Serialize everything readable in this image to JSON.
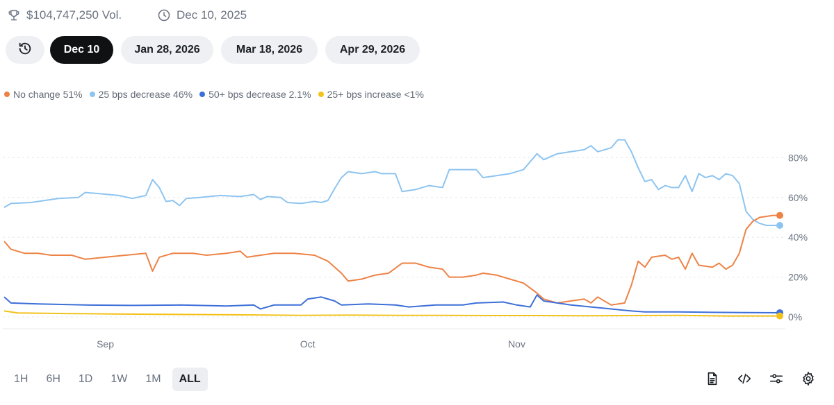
{
  "header": {
    "volume": "$104,747,250 Vol.",
    "date": "Dec 10, 2025",
    "trophy_icon": "trophy-icon",
    "clock_icon": "clock-icon"
  },
  "tabs": {
    "history_icon": "history-icon",
    "items": [
      {
        "label": "Dec 10",
        "active": true
      },
      {
        "label": "Jan 28, 2026",
        "active": false
      },
      {
        "label": "Mar 18, 2026",
        "active": false
      },
      {
        "label": "Apr 29, 2026",
        "active": false
      }
    ]
  },
  "legend": [
    {
      "label": "No change 51%",
      "color": "#ee8245"
    },
    {
      "label": "25 bps decrease 46%",
      "color": "#8dc4f0"
    },
    {
      "label": "50+ bps decrease 2.1%",
      "color": "#3d6fd8"
    },
    {
      "label": "25+ bps increase <1%",
      "color": "#f2c21b"
    }
  ],
  "ranges": [
    {
      "label": "1H",
      "active": false
    },
    {
      "label": "6H",
      "active": false
    },
    {
      "label": "1D",
      "active": false
    },
    {
      "label": "1W",
      "active": false
    },
    {
      "label": "1M",
      "active": false
    },
    {
      "label": "ALL",
      "active": true
    }
  ],
  "tools": [
    "document-icon",
    "embed-code-icon",
    "sliders-icon",
    "settings-gear-icon"
  ],
  "chart_data": {
    "type": "line",
    "x_start": "2025-08-17",
    "x_end": "2025-12-10",
    "x_ticks": [
      {
        "date": "2025-09-01",
        "label": "Sep"
      },
      {
        "date": "2025-10-01",
        "label": "Oct"
      },
      {
        "date": "2025-11-01",
        "label": "Nov"
      }
    ],
    "ylim": [
      0,
      100
    ],
    "y_ticks": [
      0,
      20,
      40,
      60,
      80
    ],
    "y_tick_labels": [
      "0%",
      "20%",
      "40%",
      "60%",
      "80%"
    ],
    "grid": true,
    "series": [
      {
        "name": "25 bps decrease",
        "color": "#8dc4f0",
        "points": [
          [
            "2025-08-17",
            55
          ],
          [
            "2025-08-18",
            57
          ],
          [
            "2025-08-21",
            57.5
          ],
          [
            "2025-08-25",
            59.5
          ],
          [
            "2025-08-28",
            60
          ],
          [
            "2025-08-29",
            62.5
          ],
          [
            "2025-08-31",
            62
          ],
          [
            "2025-09-03",
            61
          ],
          [
            "2025-09-05",
            59.5
          ],
          [
            "2025-09-07",
            61
          ],
          [
            "2025-09-08",
            69
          ],
          [
            "2025-09-09",
            65
          ],
          [
            "2025-09-10",
            58
          ],
          [
            "2025-09-11",
            58.5
          ],
          [
            "2025-09-12",
            56
          ],
          [
            "2025-09-13",
            59.5
          ],
          [
            "2025-09-15",
            60
          ],
          [
            "2025-09-18",
            61
          ],
          [
            "2025-09-21",
            60.5
          ],
          [
            "2025-09-23",
            61.5
          ],
          [
            "2025-09-24",
            59
          ],
          [
            "2025-09-25",
            60.5
          ],
          [
            "2025-09-27",
            60
          ],
          [
            "2025-09-28",
            57.5
          ],
          [
            "2025-09-30",
            57
          ],
          [
            "2025-10-02",
            58
          ],
          [
            "2025-10-03",
            57.5
          ],
          [
            "2025-10-04",
            58.5
          ],
          [
            "2025-10-05",
            64.5
          ],
          [
            "2025-10-06",
            70
          ],
          [
            "2025-10-07",
            73
          ],
          [
            "2025-10-09",
            72
          ],
          [
            "2025-10-11",
            73
          ],
          [
            "2025-10-12",
            72
          ],
          [
            "2025-10-14",
            72
          ],
          [
            "2025-10-15",
            63
          ],
          [
            "2025-10-17",
            64
          ],
          [
            "2025-10-19",
            66
          ],
          [
            "2025-10-21",
            65
          ],
          [
            "2025-10-22",
            74
          ],
          [
            "2025-10-24",
            74
          ],
          [
            "2025-10-26",
            74
          ],
          [
            "2025-10-27",
            70
          ],
          [
            "2025-10-29",
            71
          ],
          [
            "2025-10-31",
            72
          ],
          [
            "2025-11-02",
            74
          ],
          [
            "2025-11-04",
            82
          ],
          [
            "2025-11-05",
            79
          ],
          [
            "2025-11-07",
            82
          ],
          [
            "2025-11-09",
            83
          ],
          [
            "2025-11-11",
            84
          ],
          [
            "2025-11-12",
            86
          ],
          [
            "2025-11-13",
            83
          ],
          [
            "2025-11-15",
            85
          ],
          [
            "2025-11-16",
            89
          ],
          [
            "2025-11-17",
            89
          ],
          [
            "2025-11-18",
            83
          ],
          [
            "2025-11-19",
            75
          ],
          [
            "2025-11-20",
            68
          ],
          [
            "2025-11-21",
            69
          ],
          [
            "2025-11-22",
            64
          ],
          [
            "2025-11-23",
            66
          ],
          [
            "2025-11-24",
            65
          ],
          [
            "2025-11-25",
            65
          ],
          [
            "2025-11-26",
            71
          ],
          [
            "2025-11-27",
            63
          ],
          [
            "2025-11-28",
            72
          ],
          [
            "2025-11-29",
            70
          ],
          [
            "2025-11-30",
            71
          ],
          [
            "2025-12-01",
            69
          ],
          [
            "2025-12-02",
            72
          ],
          [
            "2025-12-03",
            71
          ],
          [
            "2025-12-04",
            67
          ],
          [
            "2025-12-05",
            53
          ],
          [
            "2025-12-06",
            49
          ],
          [
            "2025-12-07",
            47
          ],
          [
            "2025-12-08",
            46
          ],
          [
            "2025-12-09",
            46
          ],
          [
            "2025-12-10",
            46
          ]
        ]
      },
      {
        "name": "No change",
        "color": "#ee8245",
        "points": [
          [
            "2025-08-17",
            38
          ],
          [
            "2025-08-18",
            34
          ],
          [
            "2025-08-20",
            32
          ],
          [
            "2025-08-22",
            32
          ],
          [
            "2025-08-24",
            31
          ],
          [
            "2025-08-27",
            31
          ],
          [
            "2025-08-29",
            29
          ],
          [
            "2025-09-01",
            30
          ],
          [
            "2025-09-04",
            31
          ],
          [
            "2025-09-07",
            32
          ],
          [
            "2025-09-08",
            23
          ],
          [
            "2025-09-09",
            30
          ],
          [
            "2025-09-11",
            32
          ],
          [
            "2025-09-14",
            32
          ],
          [
            "2025-09-16",
            31
          ],
          [
            "2025-09-19",
            32
          ],
          [
            "2025-09-21",
            33
          ],
          [
            "2025-09-22",
            30
          ],
          [
            "2025-09-24",
            31
          ],
          [
            "2025-09-26",
            32
          ],
          [
            "2025-09-29",
            32
          ],
          [
            "2025-10-02",
            31
          ],
          [
            "2025-10-04",
            28
          ],
          [
            "2025-10-06",
            22
          ],
          [
            "2025-10-07",
            18
          ],
          [
            "2025-10-09",
            19
          ],
          [
            "2025-10-11",
            21
          ],
          [
            "2025-10-13",
            22
          ],
          [
            "2025-10-15",
            27
          ],
          [
            "2025-10-17",
            27
          ],
          [
            "2025-10-19",
            25
          ],
          [
            "2025-10-21",
            24
          ],
          [
            "2025-10-22",
            20
          ],
          [
            "2025-10-24",
            20
          ],
          [
            "2025-10-26",
            21
          ],
          [
            "2025-10-27",
            22
          ],
          [
            "2025-10-29",
            21
          ],
          [
            "2025-10-31",
            19
          ],
          [
            "2025-11-02",
            17
          ],
          [
            "2025-11-04",
            12
          ],
          [
            "2025-11-05",
            9
          ],
          [
            "2025-11-07",
            7
          ],
          [
            "2025-11-09",
            8
          ],
          [
            "2025-11-11",
            9
          ],
          [
            "2025-11-12",
            7
          ],
          [
            "2025-11-13",
            10
          ],
          [
            "2025-11-15",
            6
          ],
          [
            "2025-11-17",
            7
          ],
          [
            "2025-11-18",
            16
          ],
          [
            "2025-11-19",
            28
          ],
          [
            "2025-11-20",
            25
          ],
          [
            "2025-11-21",
            30
          ],
          [
            "2025-11-23",
            31
          ],
          [
            "2025-11-24",
            29
          ],
          [
            "2025-11-25",
            30
          ],
          [
            "2025-11-26",
            24
          ],
          [
            "2025-11-27",
            32
          ],
          [
            "2025-11-28",
            26
          ],
          [
            "2025-11-30",
            25
          ],
          [
            "2025-12-01",
            27
          ],
          [
            "2025-12-02",
            24
          ],
          [
            "2025-12-03",
            26
          ],
          [
            "2025-12-04",
            32
          ],
          [
            "2025-12-05",
            44
          ],
          [
            "2025-12-06",
            48
          ],
          [
            "2025-12-07",
            50
          ],
          [
            "2025-12-09",
            51
          ],
          [
            "2025-12-10",
            51
          ]
        ]
      },
      {
        "name": "50+ bps decrease",
        "color": "#3d6fd8",
        "points": [
          [
            "2025-08-17",
            10
          ],
          [
            "2025-08-18",
            7
          ],
          [
            "2025-08-22",
            6.5
          ],
          [
            "2025-08-29",
            6
          ],
          [
            "2025-09-05",
            5.8
          ],
          [
            "2025-09-12",
            6
          ],
          [
            "2025-09-19",
            5.5
          ],
          [
            "2025-09-23",
            6
          ],
          [
            "2025-09-24",
            4
          ],
          [
            "2025-09-26",
            6
          ],
          [
            "2025-09-30",
            6
          ],
          [
            "2025-10-01",
            9
          ],
          [
            "2025-10-03",
            10
          ],
          [
            "2025-10-05",
            8
          ],
          [
            "2025-10-06",
            6
          ],
          [
            "2025-10-10",
            6.5
          ],
          [
            "2025-10-14",
            6
          ],
          [
            "2025-10-16",
            5
          ],
          [
            "2025-10-20",
            6
          ],
          [
            "2025-10-24",
            6
          ],
          [
            "2025-10-26",
            7
          ],
          [
            "2025-10-30",
            7.5
          ],
          [
            "2025-11-01",
            6
          ],
          [
            "2025-11-03",
            5
          ],
          [
            "2025-11-04",
            11
          ],
          [
            "2025-11-05",
            8
          ],
          [
            "2025-11-07",
            7
          ],
          [
            "2025-11-09",
            6
          ],
          [
            "2025-11-12",
            5
          ],
          [
            "2025-11-15",
            4
          ],
          [
            "2025-11-18",
            3
          ],
          [
            "2025-11-20",
            2.5
          ],
          [
            "2025-11-25",
            2.5
          ],
          [
            "2025-11-30",
            2.3
          ],
          [
            "2025-12-05",
            2.2
          ],
          [
            "2025-12-10",
            2.1
          ]
        ]
      },
      {
        "name": "25+ bps increase",
        "color": "#f2c21b",
        "points": [
          [
            "2025-08-17",
            3
          ],
          [
            "2025-08-19",
            2
          ],
          [
            "2025-08-26",
            1.7
          ],
          [
            "2025-09-02",
            1.5
          ],
          [
            "2025-09-09",
            1.3
          ],
          [
            "2025-09-16",
            1.2
          ],
          [
            "2025-09-23",
            1
          ],
          [
            "2025-09-30",
            0.8
          ],
          [
            "2025-10-07",
            0.9
          ],
          [
            "2025-10-14",
            0.8
          ],
          [
            "2025-10-21",
            0.8
          ],
          [
            "2025-10-28",
            0.7
          ],
          [
            "2025-11-04",
            0.7
          ],
          [
            "2025-11-11",
            0.6
          ],
          [
            "2025-11-18",
            0.7
          ],
          [
            "2025-11-25",
            0.8
          ],
          [
            "2025-12-02",
            0.5
          ],
          [
            "2025-12-10",
            0.5
          ]
        ]
      }
    ]
  }
}
